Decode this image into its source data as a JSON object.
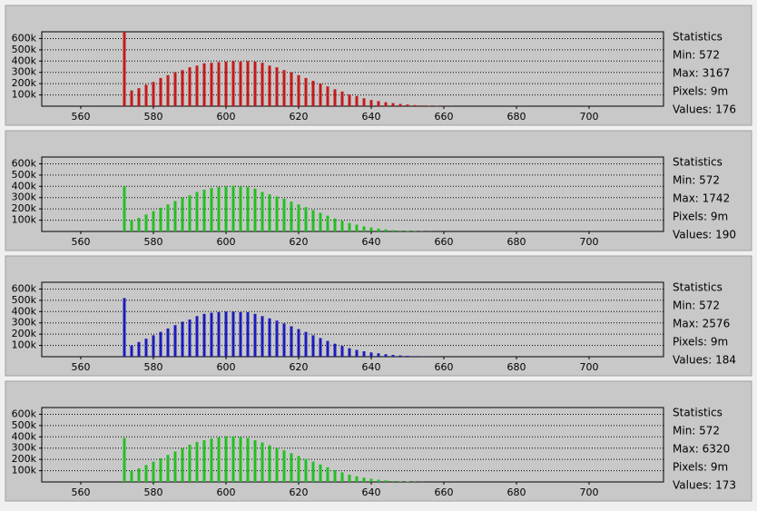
{
  "chart_data": [
    {
      "type": "bar",
      "color": "#c41a1a",
      "x": [
        572,
        574,
        576,
        578,
        580,
        582,
        584,
        586,
        588,
        590,
        592,
        594,
        596,
        598,
        600,
        602,
        604,
        606,
        608,
        610,
        612,
        614,
        616,
        618,
        620,
        622,
        624,
        626,
        628,
        630,
        632,
        634,
        636,
        638,
        640,
        642,
        644,
        646,
        648,
        650,
        652,
        654,
        656,
        658,
        660,
        662
      ],
      "values": [
        660000,
        140000,
        160000,
        190000,
        215000,
        250000,
        275000,
        300000,
        320000,
        345000,
        360000,
        380000,
        385000,
        390000,
        395000,
        400000,
        395000,
        400000,
        395000,
        385000,
        360000,
        345000,
        320000,
        300000,
        275000,
        250000,
        225000,
        200000,
        175000,
        150000,
        130000,
        105000,
        90000,
        70000,
        55000,
        45000,
        35000,
        28000,
        20000,
        15000,
        10000,
        7000,
        5000,
        3000,
        2000,
        1000
      ],
      "xlim": [
        549.25,
        720.5
      ],
      "ylim": [
        0,
        660000
      ],
      "xticks": [
        560,
        580,
        600,
        620,
        640,
        660,
        680,
        700
      ],
      "yticks": [
        {
          "value": 100000,
          "label": "100k"
        },
        {
          "value": 200000,
          "label": "200k"
        },
        {
          "value": 300000,
          "label": "300k"
        },
        {
          "value": 400000,
          "label": "400k"
        },
        {
          "value": 500000,
          "label": "500k"
        },
        {
          "value": 600000,
          "label": "600k"
        }
      ],
      "grid": true,
      "stats": [
        "Statistics",
        "Min: 572",
        "Max: 3167",
        "Pixels: 9m",
        "Values: 176"
      ]
    },
    {
      "type": "bar",
      "color": "#22c022",
      "x": [
        572,
        574,
        576,
        578,
        580,
        582,
        584,
        586,
        588,
        590,
        592,
        594,
        596,
        598,
        600,
        602,
        604,
        606,
        608,
        610,
        612,
        614,
        616,
        618,
        620,
        622,
        624,
        626,
        628,
        630,
        632,
        634,
        636,
        638,
        640,
        642,
        644,
        646,
        648,
        650,
        652,
        654,
        656,
        658,
        660,
        662
      ],
      "values": [
        400000,
        100000,
        120000,
        150000,
        180000,
        210000,
        240000,
        270000,
        300000,
        320000,
        350000,
        370000,
        385000,
        395000,
        400000,
        405000,
        400000,
        395000,
        380000,
        350000,
        330000,
        310000,
        290000,
        265000,
        240000,
        215000,
        190000,
        165000,
        140000,
        115000,
        95000,
        75000,
        60000,
        45000,
        35000,
        25000,
        18000,
        12000,
        8000,
        5000,
        3000,
        2000,
        1000,
        0,
        0,
        0
      ],
      "xlim": [
        549.25,
        720.5
      ],
      "ylim": [
        0,
        660000
      ],
      "xticks": [
        560,
        580,
        600,
        620,
        640,
        660,
        680,
        700
      ],
      "yticks": [
        {
          "value": 100000,
          "label": "100k"
        },
        {
          "value": 200000,
          "label": "200k"
        },
        {
          "value": 300000,
          "label": "300k"
        },
        {
          "value": 400000,
          "label": "400k"
        },
        {
          "value": 500000,
          "label": "500k"
        },
        {
          "value": 600000,
          "label": "600k"
        }
      ],
      "grid": true,
      "stats": [
        "Statistics",
        "Min: 572",
        "Max: 1742",
        "Pixels: 9m",
        "Values: 190"
      ]
    },
    {
      "type": "bar",
      "color": "#1c1cbc",
      "x": [
        572,
        574,
        576,
        578,
        580,
        582,
        584,
        586,
        588,
        590,
        592,
        594,
        596,
        598,
        600,
        602,
        604,
        606,
        608,
        610,
        612,
        614,
        616,
        618,
        620,
        622,
        624,
        626,
        628,
        630,
        632,
        634,
        636,
        638,
        640,
        642,
        644,
        646,
        648,
        650,
        652,
        654,
        656,
        658,
        660,
        662
      ],
      "values": [
        520000,
        100000,
        130000,
        160000,
        190000,
        220000,
        250000,
        280000,
        310000,
        330000,
        360000,
        380000,
        390000,
        395000,
        400000,
        400000,
        395000,
        395000,
        380000,
        360000,
        340000,
        320000,
        295000,
        270000,
        245000,
        220000,
        190000,
        165000,
        140000,
        115000,
        95000,
        75000,
        60000,
        48000,
        38000,
        30000,
        22000,
        16000,
        11000,
        8000,
        5000,
        3000,
        2000,
        1000,
        500,
        0
      ],
      "xlim": [
        549.25,
        720.5
      ],
      "ylim": [
        0,
        660000
      ],
      "xticks": [
        560,
        580,
        600,
        620,
        640,
        660,
        680,
        700
      ],
      "yticks": [
        {
          "value": 100000,
          "label": "100k"
        },
        {
          "value": 200000,
          "label": "200k"
        },
        {
          "value": 300000,
          "label": "300k"
        },
        {
          "value": 400000,
          "label": "400k"
        },
        {
          "value": 500000,
          "label": "500k"
        },
        {
          "value": 600000,
          "label": "600k"
        }
      ],
      "grid": true,
      "stats": [
        "Statistics",
        "Min: 572",
        "Max: 2576",
        "Pixels: 9m",
        "Values: 184"
      ]
    },
    {
      "type": "bar",
      "color": "#22c022",
      "x": [
        572,
        574,
        576,
        578,
        580,
        582,
        584,
        586,
        588,
        590,
        592,
        594,
        596,
        598,
        600,
        602,
        604,
        606,
        608,
        610,
        612,
        614,
        616,
        618,
        620,
        622,
        624,
        626,
        628,
        630,
        632,
        634,
        636,
        638,
        640,
        642,
        644,
        646,
        648,
        650,
        652,
        654,
        656,
        658,
        660,
        662
      ],
      "values": [
        390000,
        100000,
        120000,
        150000,
        180000,
        210000,
        240000,
        270000,
        300000,
        330000,
        355000,
        370000,
        385000,
        395000,
        405000,
        405000,
        400000,
        390000,
        370000,
        350000,
        325000,
        300000,
        280000,
        255000,
        230000,
        205000,
        180000,
        155000,
        130000,
        105000,
        85000,
        65000,
        50000,
        38000,
        28000,
        20000,
        14000,
        9000,
        6000,
        4000,
        2000,
        1000,
        0,
        0,
        0,
        0
      ],
      "xlim": [
        549.25,
        720.5
      ],
      "ylim": [
        0,
        660000
      ],
      "xticks": [
        560,
        580,
        600,
        620,
        640,
        660,
        680,
        700
      ],
      "yticks": [
        {
          "value": 100000,
          "label": "100k"
        },
        {
          "value": 200000,
          "label": "200k"
        },
        {
          "value": 300000,
          "label": "300k"
        },
        {
          "value": 400000,
          "label": "400k"
        },
        {
          "value": 500000,
          "label": "500k"
        },
        {
          "value": 600000,
          "label": "600k"
        }
      ],
      "grid": true,
      "stats": [
        "Statistics",
        "Min: 572",
        "Max: 6320",
        "Pixels: 9m",
        "Values: 173"
      ]
    }
  ]
}
